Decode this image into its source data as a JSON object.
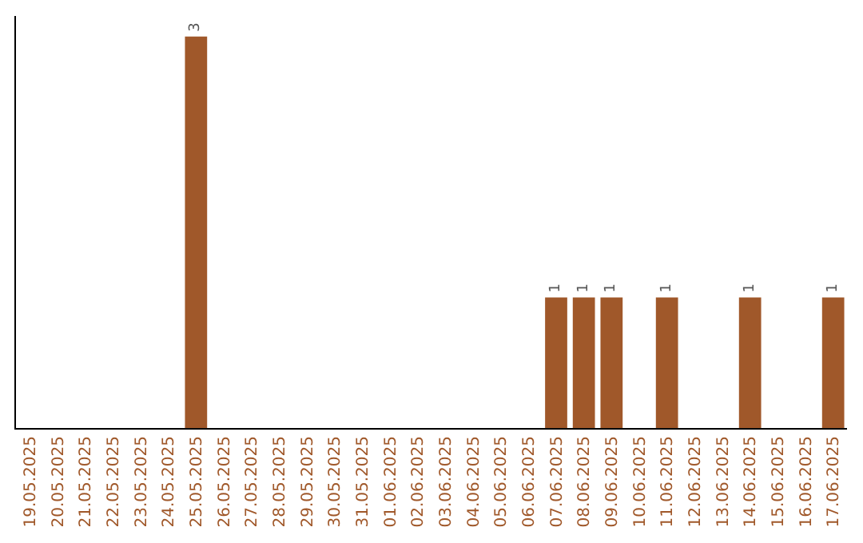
{
  "chart_data": {
    "type": "bar",
    "categories": [
      "19.05.2025",
      "20.05.2025",
      "21.05.2025",
      "22.05.2025",
      "23.05.2025",
      "24.05.2025",
      "25.05.2025",
      "26.05.2025",
      "27.05.2025",
      "28.05.2025",
      "29.05.2025",
      "30.05.2025",
      "31.05.2025",
      "01.06.2025",
      "02.06.2025",
      "03.06.2025",
      "04.06.2025",
      "05.06.2025",
      "06.06.2025",
      "07.06.2025",
      "08.06.2025",
      "09.06.2025",
      "10.06.2025",
      "11.06.2025",
      "12.06.2025",
      "13.06.2025",
      "14.06.2025",
      "15.06.2025",
      "16.06.2025",
      "17.06.2025"
    ],
    "values": [
      0,
      0,
      0,
      0,
      0,
      0,
      3,
      0,
      0,
      0,
      0,
      0,
      0,
      0,
      0,
      0,
      0,
      0,
      0,
      1,
      1,
      1,
      0,
      1,
      0,
      0,
      1,
      0,
      0,
      1
    ],
    "value_labels": [
      null,
      null,
      null,
      null,
      null,
      null,
      "3",
      null,
      null,
      null,
      null,
      null,
      null,
      null,
      null,
      null,
      null,
      null,
      null,
      "1",
      "1",
      "1",
      null,
      "1",
      null,
      null,
      "1",
      null,
      null,
      "1"
    ],
    "color": "#a0582a",
    "tick_labels": "x",
    "grid": false
  }
}
